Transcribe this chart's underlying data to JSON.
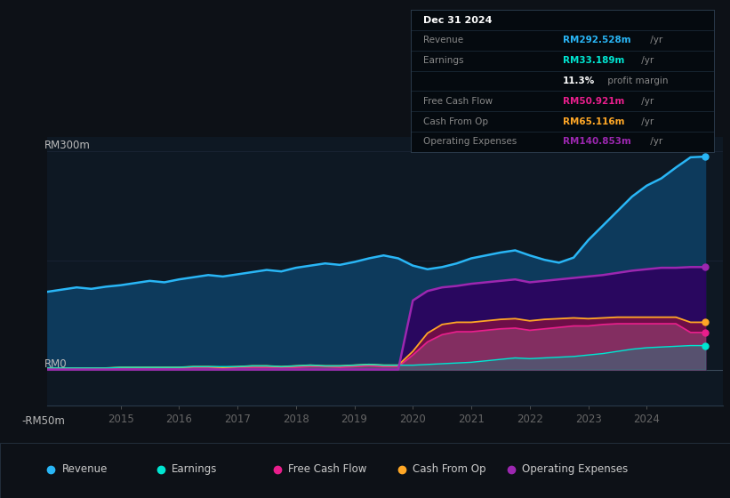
{
  "bg_color": "#0d1117",
  "plot_bg_color": "#0e1823",
  "grid_color": "#1a2535",
  "ylabel_top": "RM300m",
  "ylabel_zero": "RM0",
  "ylabel_bottom": "-RM50m",
  "ylim": [
    -50,
    320
  ],
  "xlim": [
    2013.75,
    2025.3
  ],
  "xticks": [
    2015,
    2016,
    2017,
    2018,
    2019,
    2020,
    2021,
    2022,
    2023,
    2024
  ],
  "line_color_revenue": "#29b6f6",
  "fill_color_revenue": "#0d3a5c",
  "line_color_earnings": "#00e5d1",
  "fill_color_earnings": "#1a3a4a",
  "line_color_fcf": "#e91e8c",
  "fill_color_fcf": "#7b1fa2",
  "line_color_cashop": "#ffa726",
  "fill_color_cashop": "#c2185b",
  "line_color_opex": "#9c27b0",
  "fill_color_opex": "#4a0080",
  "legend_items": [
    {
      "label": "Revenue",
      "color": "#29b6f6"
    },
    {
      "label": "Earnings",
      "color": "#00e5d1"
    },
    {
      "label": "Free Cash Flow",
      "color": "#e91e8c"
    },
    {
      "label": "Cash From Op",
      "color": "#ffa726"
    },
    {
      "label": "Operating Expenses",
      "color": "#9c27b0"
    }
  ],
  "years": [
    2013.75,
    2014.0,
    2014.25,
    2014.5,
    2014.75,
    2015.0,
    2015.25,
    2015.5,
    2015.75,
    2016.0,
    2016.25,
    2016.5,
    2016.75,
    2017.0,
    2017.25,
    2017.5,
    2017.75,
    2018.0,
    2018.25,
    2018.5,
    2018.75,
    2019.0,
    2019.25,
    2019.5,
    2019.75,
    2020.0,
    2020.25,
    2020.5,
    2020.75,
    2021.0,
    2021.25,
    2021.5,
    2021.75,
    2022.0,
    2022.25,
    2022.5,
    2022.75,
    2023.0,
    2023.25,
    2023.5,
    2023.75,
    2024.0,
    2024.25,
    2024.5,
    2024.75,
    2025.0
  ],
  "revenue": [
    107,
    110,
    113,
    111,
    114,
    116,
    119,
    122,
    120,
    124,
    127,
    130,
    128,
    131,
    134,
    137,
    135,
    140,
    143,
    146,
    144,
    148,
    153,
    157,
    153,
    143,
    138,
    141,
    146,
    153,
    157,
    161,
    164,
    157,
    151,
    147,
    154,
    178,
    198,
    218,
    238,
    253,
    263,
    278,
    292,
    293
  ],
  "earnings": [
    2,
    2,
    2,
    2,
    2,
    3,
    3,
    3,
    3,
    3,
    4,
    4,
    4,
    4,
    5,
    5,
    4,
    5,
    6,
    5,
    5,
    6,
    7,
    6,
    6,
    6,
    7,
    8,
    9,
    10,
    12,
    14,
    16,
    15,
    16,
    17,
    18,
    20,
    22,
    25,
    28,
    30,
    31,
    32,
    33,
    33
  ],
  "fcf": [
    1,
    1,
    1,
    1,
    1,
    2,
    2,
    2,
    2,
    2,
    3,
    3,
    2,
    3,
    3,
    3,
    3,
    3,
    4,
    4,
    3,
    4,
    5,
    4,
    4,
    20,
    38,
    48,
    52,
    52,
    54,
    56,
    57,
    54,
    56,
    58,
    60,
    60,
    62,
    63,
    63,
    63,
    63,
    63,
    51,
    51
  ],
  "cashop": [
    2,
    2,
    2,
    2,
    2,
    3,
    3,
    3,
    3,
    3,
    4,
    4,
    3,
    4,
    5,
    5,
    4,
    5,
    6,
    5,
    5,
    6,
    7,
    6,
    6,
    25,
    50,
    62,
    65,
    65,
    67,
    69,
    70,
    67,
    69,
    70,
    71,
    70,
    71,
    72,
    72,
    72,
    72,
    72,
    65,
    65
  ],
  "opex": [
    0,
    0,
    0,
    0,
    0,
    0,
    0,
    0,
    0,
    0,
    0,
    0,
    0,
    0,
    0,
    0,
    0,
    0,
    0,
    0,
    0,
    0,
    0,
    0,
    0,
    95,
    108,
    113,
    115,
    118,
    120,
    122,
    124,
    120,
    122,
    124,
    126,
    128,
    130,
    133,
    136,
    138,
    140,
    140,
    141,
    141
  ],
  "info_rows": [
    {
      "label": "Dec 31 2024",
      "value": "",
      "value_color": "#ffffff",
      "is_title": true
    },
    {
      "label": "Revenue",
      "value": "RM292.528m",
      "suffix": " /yr",
      "value_color": "#29b6f6"
    },
    {
      "label": "Earnings",
      "value": "RM33.189m",
      "suffix": " /yr",
      "value_color": "#00e5d1"
    },
    {
      "label": "",
      "value": "11.3%",
      "suffix": " profit margin",
      "value_color": "#ffffff"
    },
    {
      "label": "Free Cash Flow",
      "value": "RM50.921m",
      "suffix": " /yr",
      "value_color": "#e91e8c"
    },
    {
      "label": "Cash From Op",
      "value": "RM65.116m",
      "suffix": " /yr",
      "value_color": "#ffa726"
    },
    {
      "label": "Operating Expenses",
      "value": "RM140.853m",
      "suffix": " /yr",
      "value_color": "#9c27b0"
    }
  ]
}
